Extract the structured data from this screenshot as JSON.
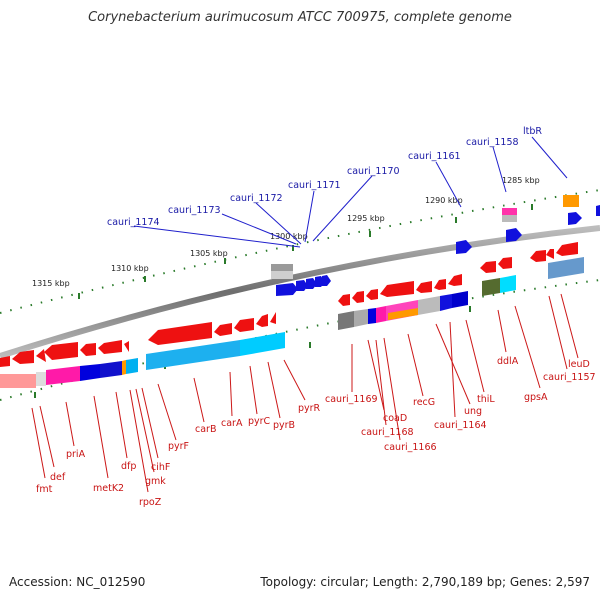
{
  "header": {
    "title": "Corynebacterium aurimucosum ATCC 700975, complete genome"
  },
  "footer": {
    "accession": "Accession: NC_012590",
    "topology": "Topology: circular; Length: 2,790,189 bp; Genes: 2,597"
  },
  "colors": {
    "forward_gene_label": "#1a1aa6",
    "reverse_gene_label": "#c81414",
    "cds_arrow": "#ee1111",
    "backbone": "#8c8c8c",
    "tick": "#2a7a2a",
    "cog_colors": [
      "#ff66cc",
      "#0000dd",
      "#00b0f0",
      "#ff9900",
      "#999999",
      "#556b2f",
      "#6699cc"
    ]
  },
  "kbp_labels": [
    "1315 kbp",
    "1310 kbp",
    "1305 kbp",
    "1300 kbp",
    "1295 kbp",
    "1290 kbp",
    "1285 kbp"
  ],
  "forward_labels": [
    "cauri_1174",
    "cauri_1173",
    "cauri_1172",
    "cauri_1171",
    "cauri_1170",
    "cauri_1161",
    "cauri_1158",
    "ltbR"
  ],
  "reverse_labels": [
    "fmt",
    "def",
    "priA",
    "metK2",
    "dfp",
    "rpoZ",
    "gmk",
    "cihF",
    "pyrF",
    "carB",
    "carA",
    "pyrC",
    "pyrB",
    "pyrR",
    "cauri_1169",
    "coaD",
    "cauri_1168",
    "cauri_1166",
    "recG",
    "ung",
    "cauri_1164",
    "thiL",
    "ddlA",
    "gpsA",
    "cauri_1157",
    "leuD"
  ]
}
